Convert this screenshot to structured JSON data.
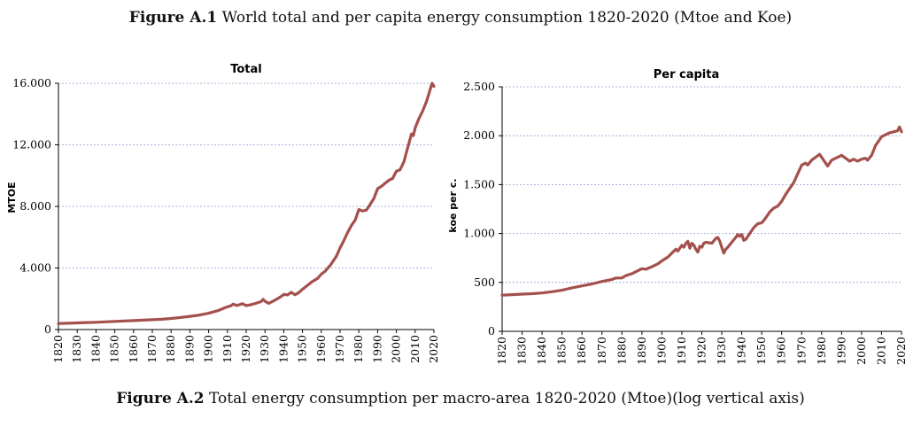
{
  "figure1": {
    "label": "Figure A.1",
    "text": "World total and per capita energy consumption 1820-2020 (Mtoe and Koe)"
  },
  "figure2": {
    "label": "Figure A.2",
    "text": "Total energy consumption per macro-area 1820-2020 (Mtoe)(log vertical axis)"
  },
  "colors": {
    "series": "#a4504c",
    "grid": "#8f9fce"
  },
  "chart_data": [
    {
      "type": "line",
      "title": "Total",
      "xlabel": "",
      "ylabel": "MTOE",
      "xlim": [
        1820,
        2020
      ],
      "ylim": [
        0,
        16000
      ],
      "x_ticks": [
        1820,
        1830,
        1840,
        1850,
        1860,
        1870,
        1880,
        1890,
        1900,
        1910,
        1920,
        1930,
        1940,
        1950,
        1960,
        1970,
        1980,
        1990,
        2000,
        2010,
        2020
      ],
      "y_ticks": [
        0,
        4000,
        8000,
        12000,
        16000
      ],
      "y_tick_labels": [
        "0",
        "4.000",
        "8.000",
        "12.000",
        "16.000"
      ],
      "grid": true,
      "series": [
        {
          "name": "Total",
          "x": [
            1820,
            1825,
            1830,
            1835,
            1840,
            1845,
            1850,
            1855,
            1860,
            1865,
            1870,
            1875,
            1880,
            1885,
            1890,
            1895,
            1900,
            1905,
            1908,
            1910,
            1912,
            1913,
            1915,
            1918,
            1920,
            1922,
            1925,
            1928,
            1929,
            1930,
            1932,
            1935,
            1938,
            1940,
            1942,
            1944,
            1946,
            1948,
            1950,
            1952,
            1955,
            1958,
            1960,
            1962,
            1965,
            1968,
            1970,
            1972,
            1974,
            1976,
            1978,
            1980,
            1982,
            1984,
            1986,
            1988,
            1990,
            1992,
            1994,
            1996,
            1998,
            2000,
            2002,
            2004,
            2006,
            2008,
            2009,
            2010,
            2012,
            2014,
            2016,
            2018,
            2019,
            2020
          ],
          "values": [
            390,
            410,
            430,
            455,
            470,
            500,
            530,
            560,
            580,
            610,
            640,
            670,
            720,
            780,
            860,
            940,
            1060,
            1230,
            1380,
            1480,
            1550,
            1650,
            1560,
            1680,
            1560,
            1600,
            1700,
            1820,
            1960,
            1840,
            1700,
            1890,
            2100,
            2280,
            2250,
            2420,
            2260,
            2400,
            2620,
            2810,
            3100,
            3320,
            3600,
            3780,
            4210,
            4760,
            5300,
            5770,
            6300,
            6750,
            7100,
            7800,
            7700,
            7760,
            8120,
            8520,
            9150,
            9300,
            9500,
            9700,
            9820,
            10290,
            10380,
            10900,
            11800,
            12700,
            12600,
            13100,
            13700,
            14200,
            14800,
            15600,
            16000,
            15800
          ]
        }
      ]
    },
    {
      "type": "line",
      "title": "Per capita",
      "xlabel": "",
      "ylabel": "koe per c.",
      "xlim": [
        1820,
        2020
      ],
      "ylim": [
        0,
        2500
      ],
      "x_ticks": [
        1820,
        1830,
        1840,
        1850,
        1860,
        1870,
        1880,
        1890,
        1900,
        1910,
        1920,
        1930,
        1940,
        1950,
        1960,
        1970,
        1980,
        1990,
        2000,
        2010,
        2020
      ],
      "y_ticks": [
        0,
        500,
        1000,
        1500,
        2000,
        2500
      ],
      "y_tick_labels": [
        "0",
        "500",
        "1.000",
        "1.500",
        "2.000",
        "2.500"
      ],
      "grid": true,
      "series": [
        {
          "name": "Per capita",
          "x": [
            1820,
            1825,
            1830,
            1835,
            1840,
            1845,
            1850,
            1855,
            1860,
            1865,
            1870,
            1875,
            1877,
            1880,
            1882,
            1885,
            1888,
            1890,
            1892,
            1895,
            1898,
            1900,
            1903,
            1905,
            1907,
            1908,
            1910,
            1911,
            1912,
            1913,
            1914,
            1915,
            1916,
            1917,
            1918,
            1919,
            1920,
            1921,
            1922,
            1925,
            1927,
            1928,
            1929,
            1930,
            1931,
            1932,
            1933,
            1935,
            1937,
            1938,
            1939,
            1940,
            1941,
            1942,
            1943,
            1944,
            1946,
            1948,
            1950,
            1952,
            1954,
            1956,
            1958,
            1960,
            1962,
            1964,
            1966,
            1968,
            1970,
            1972,
            1973,
            1975,
            1977,
            1979,
            1980,
            1982,
            1983,
            1985,
            1987,
            1989,
            1990,
            1992,
            1994,
            1996,
            1998,
            2000,
            2002,
            2003,
            2005,
            2007,
            2009,
            2010,
            2012,
            2014,
            2016,
            2018,
            2019,
            2020
          ],
          "values": [
            370,
            375,
            380,
            385,
            392,
            405,
            420,
            445,
            465,
            485,
            510,
            530,
            545,
            545,
            570,
            590,
            620,
            640,
            635,
            660,
            690,
            720,
            760,
            800,
            840,
            820,
            880,
            860,
            900,
            920,
            850,
            900,
            880,
            840,
            810,
            870,
            860,
            900,
            910,
            900,
            950,
            960,
            920,
            860,
            800,
            840,
            860,
            910,
            960,
            990,
            970,
            990,
            930,
            940,
            970,
            1000,
            1060,
            1100,
            1110,
            1160,
            1220,
            1260,
            1280,
            1330,
            1400,
            1460,
            1520,
            1610,
            1700,
            1720,
            1700,
            1750,
            1780,
            1810,
            1780,
            1720,
            1690,
            1750,
            1770,
            1790,
            1800,
            1770,
            1740,
            1760,
            1740,
            1760,
            1770,
            1750,
            1800,
            1900,
            1960,
            1990,
            2010,
            2030,
            2040,
            2050,
            2090,
            2040
          ]
        }
      ]
    }
  ]
}
